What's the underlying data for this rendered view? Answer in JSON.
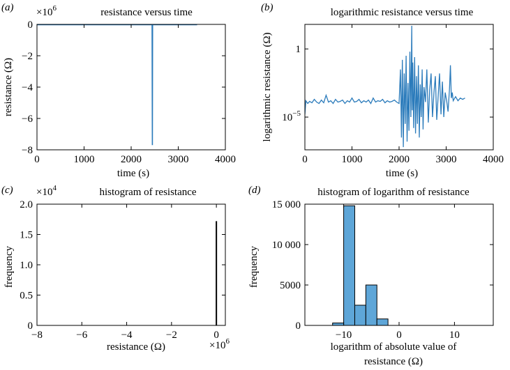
{
  "chart_data": [
    {
      "id": "a",
      "type": "line",
      "panel_label": "(a)",
      "title": "resistance versus time",
      "xlabel": "time (s)",
      "ylabel": "resistance (Ω)",
      "xlim": [
        0,
        4000
      ],
      "ylim": [
        -8,
        0
      ],
      "xticks": [
        "0",
        "1000",
        "2000",
        "3000",
        "4000"
      ],
      "xtick_values": [
        0,
        1000,
        2000,
        3000,
        4000
      ],
      "yticks": [
        "0",
        "−2",
        "−4",
        "−6",
        "−8"
      ],
      "ytick_values": [
        0,
        -2,
        -4,
        -6,
        -8
      ],
      "y_multiplier_base": "×10",
      "y_multiplier_exp": "6",
      "color": "#2b7bbb",
      "series": [
        {
          "name": "resistance",
          "x": [
            0,
            2445,
            2450,
            2455,
            3400
          ],
          "y": [
            -0.02,
            -0.02,
            -7.7,
            -0.02,
            -0.02
          ]
        }
      ]
    },
    {
      "id": "b",
      "type": "line",
      "panel_label": "(b)",
      "title": "logarithmic resistance versus time",
      "xlabel": "time (s)",
      "ylabel": "logarithmic resistance (Ω)",
      "xlim": [
        0,
        4000
      ],
      "ylim_log10": [
        -7.4,
        1.8
      ],
      "xticks": [
        "0",
        "1000",
        "2000",
        "3000",
        "4000"
      ],
      "xtick_values": [
        0,
        1000,
        2000,
        3000,
        4000
      ],
      "ytick_labels": [
        "1",
        "10"
      ],
      "ytick_exp": "−5",
      "ytick_values_log10": [
        0,
        -5
      ],
      "color": "#2b7bbb",
      "series": [
        {
          "name": "log resistance",
          "x": [
            0,
            20,
            60,
            100,
            150,
            200,
            250,
            300,
            350,
            400,
            450,
            500,
            550,
            600,
            650,
            700,
            750,
            800,
            850,
            900,
            950,
            1000,
            1050,
            1100,
            1150,
            1200,
            1250,
            1300,
            1350,
            1400,
            1450,
            1500,
            1550,
            1600,
            1650,
            1700,
            1750,
            1800,
            1850,
            1900,
            1950,
            2000,
            2030,
            2050,
            2070,
            2090,
            2110,
            2130,
            2150,
            2170,
            2190,
            2210,
            2230,
            2250,
            2270,
            2280,
            2290,
            2310,
            2330,
            2350,
            2370,
            2390,
            2410,
            2430,
            2450,
            2470,
            2490,
            2510,
            2530,
            2560,
            2590,
            2620,
            2650,
            2680,
            2710,
            2740,
            2770,
            2800,
            2830,
            2860,
            2890,
            2920,
            2950,
            2980,
            3010,
            3040,
            3070,
            3090,
            3110,
            3130,
            3150,
            3200,
            3250,
            3300,
            3350,
            3400
          ],
          "y": [
            -4.8,
            -3.8,
            -4.0,
            -3.85,
            -3.95,
            -3.7,
            -3.9,
            -4.0,
            -3.75,
            -3.95,
            -3.4,
            -3.9,
            -3.8,
            -4.0,
            -3.7,
            -3.9,
            -3.85,
            -3.75,
            -4.0,
            -3.8,
            -3.9,
            -3.6,
            -3.9,
            -3.85,
            -3.7,
            -3.95,
            -3.8,
            -3.9,
            -3.75,
            -4.0,
            -3.6,
            -3.9,
            -3.8,
            -3.85,
            -3.7,
            -3.95,
            -3.8,
            -3.9,
            -3.85,
            -3.75,
            -3.9,
            -4.0,
            -1.5,
            -6.5,
            -0.8,
            -7.2,
            -1.8,
            -5.5,
            -0.5,
            -6.8,
            -2.5,
            -6.0,
            -0.2,
            -5.0,
            1.7,
            -4.5,
            -1.0,
            -5.8,
            -0.6,
            -6.2,
            -2.0,
            -5.5,
            -1.2,
            -6.5,
            -2.6,
            -5.0,
            -1.5,
            -5.9,
            -2.8,
            -3.9,
            -1.5,
            -5.4,
            -3.0,
            -1.8,
            -5.0,
            -3.2,
            -2.0,
            -5.2,
            -3.5,
            -1.8,
            -4.8,
            -2.4,
            -5.0,
            -3.2,
            -3.8,
            -4.6,
            -3.0,
            -1.2,
            -3.6,
            -3.2,
            -3.8,
            -3.5,
            -3.8,
            -3.6,
            -3.7,
            -3.6
          ]
        }
      ]
    },
    {
      "id": "c",
      "type": "bar",
      "panel_label": "(c)",
      "title": "histogram of resistance",
      "xlabel": "resistance (Ω)",
      "ylabel": "frequency",
      "xlim": [
        -8,
        0.4
      ],
      "ylim": [
        0,
        2.0
      ],
      "xticks": [
        "−8",
        "−6",
        "−4",
        "−2",
        "0"
      ],
      "xtick_values": [
        -8,
        -6,
        -4,
        -2,
        0
      ],
      "yticks": [
        "0",
        "0.5",
        "1.0",
        "1.5",
        "2.0"
      ],
      "ytick_values": [
        0,
        0.5,
        1.0,
        1.5,
        2.0
      ],
      "x_multiplier_base": "×10",
      "x_multiplier_exp": "6",
      "y_multiplier_base": "×10",
      "y_multiplier_exp": "4",
      "bins": [
        {
          "x": 0,
          "count": 1.72
        }
      ]
    },
    {
      "id": "d",
      "type": "bar",
      "panel_label": "(d)",
      "title": "histogram of logarithm of resistance",
      "xlabel": "logarithm of absolute value of",
      "xlabel_line2": "resistance (Ω)",
      "ylabel": "frequency",
      "xlim": [
        -17,
        17
      ],
      "ylim": [
        0,
        15000
      ],
      "xticks": [
        "−10",
        "0",
        "10"
      ],
      "xtick_values": [
        -10,
        0,
        10
      ],
      "yticks": [
        "0",
        "5000",
        "10 000",
        "15 000"
      ],
      "ytick_values": [
        0,
        5000,
        10000,
        15000
      ],
      "bar_color": "#5ea6d8",
      "bins": [
        {
          "x0": -12,
          "x1": -10,
          "count": 300
        },
        {
          "x0": -10,
          "x1": -8,
          "count": 14800
        },
        {
          "x0": -8,
          "x1": -6,
          "count": 2500
        },
        {
          "x0": -6,
          "x1": -4,
          "count": 5000
        },
        {
          "x0": -4,
          "x1": -2,
          "count": 800
        }
      ]
    }
  ]
}
